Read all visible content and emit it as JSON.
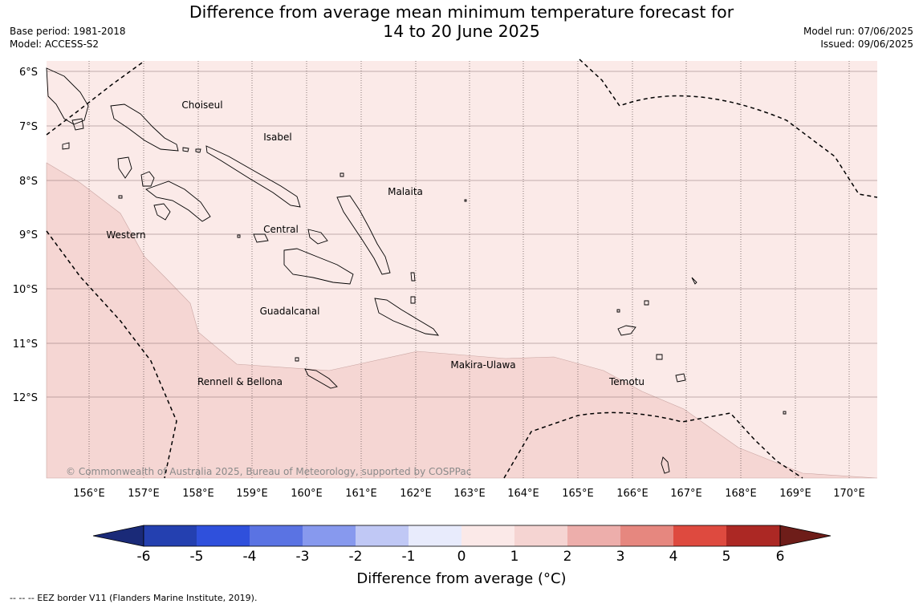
{
  "header": {
    "title_line1": "Difference from average mean minimum temperature forecast for",
    "title_line2": "14 to 20 June 2025",
    "base_period": "Base period: 1981-2018",
    "model": "Model: ACCESS-S2",
    "model_run": "Model run: 07/06/2025",
    "issued": "Issued: 09/06/2025"
  },
  "map": {
    "lat_labels": [
      "6°S",
      "7°S",
      "8°S",
      "9°S",
      "10°S",
      "11°S",
      "12°S"
    ],
    "lon_labels": [
      "156°E",
      "157°E",
      "158°E",
      "159°E",
      "160°E",
      "161°E",
      "162°E",
      "163°E",
      "164°E",
      "165°E",
      "166°E",
      "167°E",
      "168°E",
      "169°E",
      "170°E"
    ],
    "places": {
      "choiseul": "Choiseul",
      "isabel": "Isabel",
      "malaita": "Malaita",
      "western": "Western",
      "central": "Central",
      "guadalcanal": "Guadalcanal",
      "makira": "Makira-Ulawa",
      "rennell": "Rennell & Bellona",
      "temotu": "Temotu"
    },
    "copyright": "© Commonwealth of Australia 2025, Bureau of Meteorology, supported by COSPPac",
    "colors": {
      "anomaly_0_1": "#fbeae8",
      "anomaly_1_2": "#f5d6d3"
    }
  },
  "colorbar": {
    "title": "Difference from average (°C)",
    "tick_labels": [
      "-6",
      "-5",
      "-4",
      "-3",
      "-2",
      "-1",
      "0",
      "1",
      "2",
      "3",
      "4",
      "5",
      "6"
    ],
    "colors": [
      "#1a2a78",
      "#2440b0",
      "#2f50dc",
      "#5a73e3",
      "#8799ee",
      "#c0c8f5",
      "#e8ebfc",
      "#fbe9e8",
      "#f5d4d2",
      "#edaeab",
      "#e6877f",
      "#de4a3f",
      "#ac2824",
      "#6e1d19"
    ]
  },
  "footer": {
    "legend_text": "--  --  -- EEZ border V11 (Flanders Marine Institute, 2019)."
  }
}
